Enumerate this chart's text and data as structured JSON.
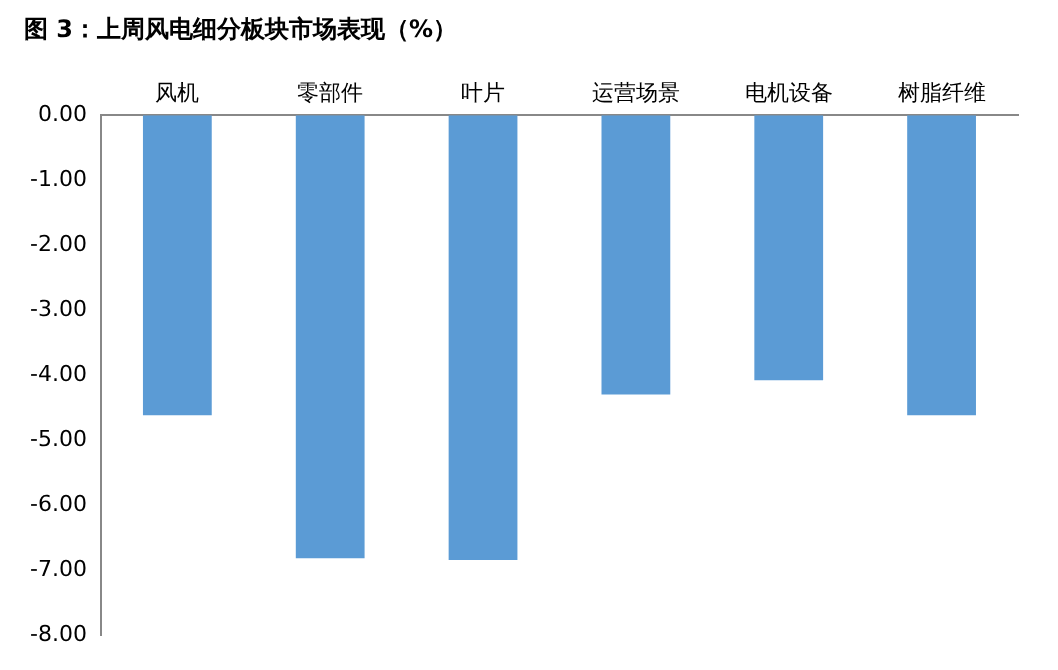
{
  "chart_data": {
    "type": "bar",
    "title": "图 3：上周风电细分板块市场表现（%）",
    "categories": [
      "风机",
      "零部件",
      "叶片",
      "运营场景",
      "电机设备",
      "树脂纤维"
    ],
    "values": [
      -4.62,
      -6.82,
      -6.85,
      -4.3,
      -4.08,
      -4.62
    ],
    "color": "#5b9bd5",
    "ylim": [
      -8,
      0
    ],
    "yticks": [
      {
        "value": 0,
        "label": "0.00"
      },
      {
        "value": -1,
        "label": "-1.00"
      },
      {
        "value": -2,
        "label": "-2.00"
      },
      {
        "value": -3,
        "label": "-3.00"
      },
      {
        "value": -4,
        "label": "-4.00"
      },
      {
        "value": -5,
        "label": "-5.00"
      },
      {
        "value": -6,
        "label": "-6.00"
      },
      {
        "value": -7,
        "label": "-7.00"
      },
      {
        "value": -8,
        "label": "-8.00"
      }
    ],
    "grid": false,
    "legend": false
  }
}
